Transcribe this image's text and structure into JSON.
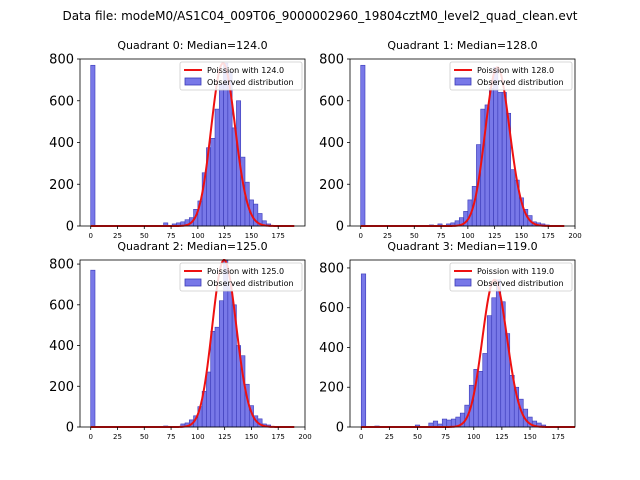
{
  "figure": {
    "title": "Data file: modeM0/AS1C04_009T06_9000002960_19804cztM0_level2_quad_clean.evt"
  },
  "colors": {
    "bar_fill": "#7878e8",
    "bar_edge": "#3a3ab8",
    "poisson_line": "#ee1111"
  },
  "chart_data": [
    {
      "type": "bar",
      "title": "Quadrant 0: Median=124.0",
      "median": 124.0,
      "xlim": [
        -10,
        200
      ],
      "ylim": [
        0,
        800
      ],
      "xticks": [
        0,
        25,
        50,
        75,
        100,
        125,
        150,
        175
      ],
      "yticks": [
        0,
        200,
        400,
        600,
        800
      ],
      "legend_loc": "upper right",
      "legend": [
        "Poission with 124.0",
        "Observed distribution"
      ],
      "bin_width": 4,
      "x": [
        0,
        68,
        76,
        80,
        84,
        88,
        92,
        96,
        100,
        104,
        108,
        112,
        116,
        120,
        124,
        128,
        132,
        136,
        140,
        144,
        148,
        152,
        156,
        160,
        164
      ],
      "values": [
        770,
        15,
        10,
        15,
        20,
        30,
        40,
        80,
        120,
        255,
        375,
        420,
        560,
        680,
        780,
        740,
        470,
        600,
        330,
        210,
        125,
        105,
        60,
        25,
        10
      ]
    },
    {
      "type": "bar",
      "title": "Quadrant 1: Median=128.0",
      "median": 128.0,
      "xlim": [
        -10,
        200
      ],
      "ylim": [
        0,
        800
      ],
      "xticks": [
        0,
        25,
        50,
        75,
        100,
        125,
        150,
        175,
        200
      ],
      "yticks": [
        0,
        200,
        400,
        600,
        800
      ],
      "legend_loc": "upper right",
      "legend": [
        "Poission with 128.0",
        "Observed distribution"
      ],
      "bin_width": 4,
      "x": [
        0,
        64,
        72,
        80,
        84,
        88,
        92,
        96,
        100,
        104,
        108,
        112,
        116,
        120,
        124,
        128,
        132,
        136,
        140,
        144,
        148,
        152,
        156,
        160,
        164,
        168,
        172
      ],
      "values": [
        770,
        5,
        10,
        10,
        15,
        25,
        40,
        70,
        125,
        190,
        390,
        560,
        580,
        660,
        760,
        640,
        640,
        540,
        270,
        220,
        135,
        80,
        50,
        20,
        15,
        10,
        5
      ]
    },
    {
      "type": "bar",
      "title": "Quadrant 2: Median=125.0",
      "median": 125.0,
      "xlim": [
        -10,
        200
      ],
      "ylim": [
        0,
        820
      ],
      "xticks": [
        0,
        25,
        50,
        75,
        100,
        125,
        150,
        175,
        200
      ],
      "yticks": [
        0,
        200,
        400,
        600,
        800
      ],
      "legend_loc": "upper right",
      "legend": [
        "Poission with 125.0",
        "Observed distribution"
      ],
      "bin_width": 4,
      "x": [
        0,
        68,
        84,
        88,
        92,
        96,
        100,
        104,
        108,
        112,
        116,
        120,
        124,
        128,
        132,
        136,
        140,
        144,
        148,
        152,
        156,
        160,
        164
      ],
      "values": [
        770,
        5,
        15,
        20,
        35,
        55,
        100,
        175,
        270,
        470,
        490,
        620,
        820,
        700,
        600,
        400,
        350,
        210,
        105,
        55,
        40,
        15,
        10
      ]
    },
    {
      "type": "bar",
      "title": "Quadrant 3: Median=119.0",
      "median": 119.0,
      "xlim": [
        -10,
        190
      ],
      "ylim": [
        0,
        840
      ],
      "xticks": [
        0,
        25,
        50,
        75,
        100,
        125,
        150,
        175
      ],
      "yticks": [
        0,
        200,
        400,
        600,
        800
      ],
      "legend_loc": "upper right",
      "legend": [
        "Poission with 119.0",
        "Observed distribution"
      ],
      "bin_width": 4,
      "x": [
        0,
        12,
        48,
        60,
        64,
        68,
        72,
        76,
        80,
        84,
        88,
        92,
        96,
        100,
        104,
        108,
        112,
        116,
        120,
        124,
        128,
        132,
        136,
        140,
        144,
        148,
        152,
        156,
        160
      ],
      "values": [
        770,
        5,
        10,
        20,
        30,
        15,
        40,
        35,
        40,
        50,
        70,
        110,
        210,
        290,
        280,
        370,
        560,
        650,
        740,
        630,
        470,
        260,
        200,
        140,
        90,
        50,
        30,
        20,
        10
      ]
    }
  ]
}
